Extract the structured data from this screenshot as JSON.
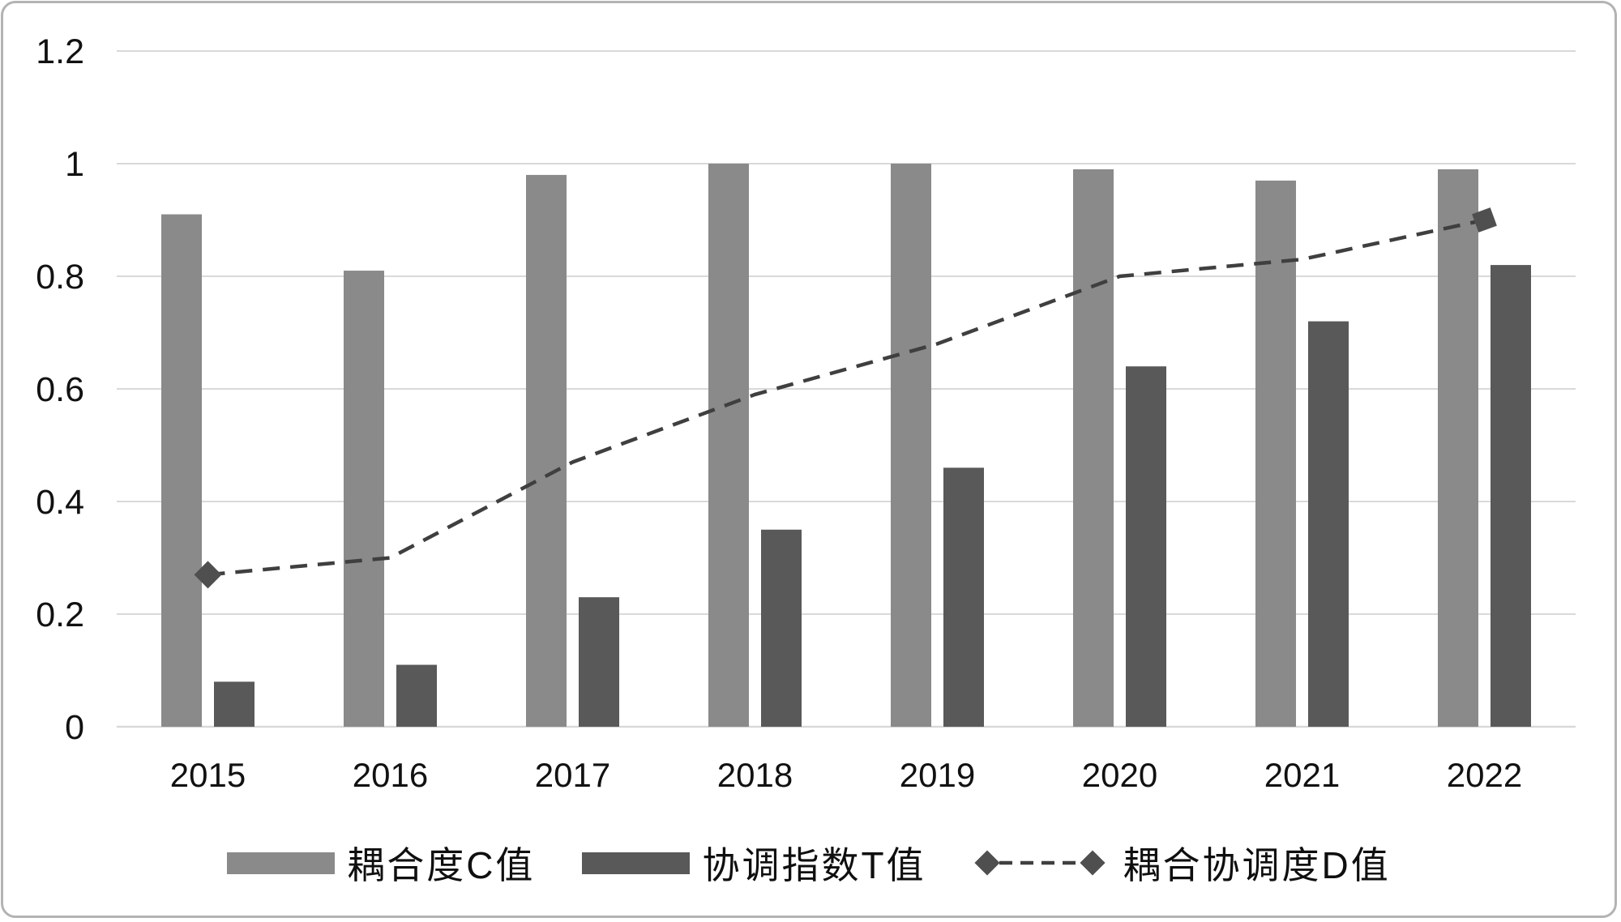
{
  "chart_data": {
    "type": "bar",
    "title": "",
    "xlabel": "",
    "ylabel": "",
    "categories": [
      "2015",
      "2016",
      "2017",
      "2018",
      "2019",
      "2020",
      "2021",
      "2022"
    ],
    "series": [
      {
        "name": "耦合度C值",
        "type": "bar",
        "color": "#8a8a8a",
        "values": [
          0.91,
          0.81,
          0.98,
          1.0,
          1.0,
          0.99,
          0.97,
          0.99
        ]
      },
      {
        "name": "协调指数T值",
        "type": "bar",
        "color": "#595959",
        "values": [
          0.08,
          0.11,
          0.23,
          0.35,
          0.46,
          0.64,
          0.72,
          0.82
        ]
      },
      {
        "name": "耦合协调度D值",
        "type": "line",
        "line_style": "dashed",
        "marker": "diamond",
        "markers_visible_at": [
          "2015",
          "2022"
        ],
        "color": "#3f3f3f",
        "marker_color": "#4f4f4f",
        "values": [
          0.27,
          0.3,
          0.47,
          0.59,
          0.68,
          0.8,
          0.83,
          0.9
        ]
      }
    ],
    "ylim": [
      0,
      1.2
    ],
    "yticks": [
      0,
      0.2,
      0.4,
      0.6,
      0.8,
      1,
      1.2
    ],
    "ytick_labels": [
      "0",
      "0.2",
      "0.4",
      "0.6",
      "0.8",
      "1",
      "1.2"
    ],
    "grid": true,
    "gridline_color": "#d9d9d9",
    "axis_label_color": "#111111",
    "legend_position": "bottom",
    "frame_border_color": "#b3b3b3",
    "background_color": "#ffffff"
  }
}
